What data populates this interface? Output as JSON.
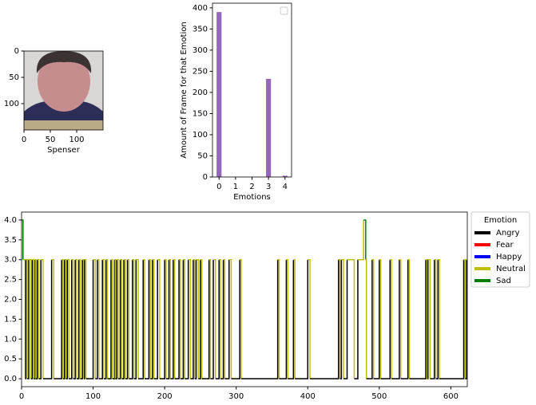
{
  "chart_data": [
    {
      "type": "image",
      "xlabel": "Spenser",
      "xlim": [
        0,
        150
      ],
      "ylim": [
        150,
        0
      ],
      "xticks": [
        0,
        50,
        100
      ],
      "yticks": [
        0,
        50,
        100
      ]
    },
    {
      "type": "bar",
      "xlabel": "Emotions",
      "ylabel": "Amount of Frame for that Emotion",
      "x": [
        0,
        1,
        2,
        3,
        4
      ],
      "values": [
        390,
        0,
        0,
        232,
        3
      ],
      "color": "#9467bd",
      "xlim": [
        -0.4,
        4.4
      ],
      "ylim": [
        0,
        411
      ],
      "xticks": [
        0,
        1,
        2,
        3,
        4
      ],
      "yticks": [
        0,
        50,
        100,
        150,
        200,
        250,
        300,
        350,
        400
      ],
      "legend": "upper right"
    },
    {
      "type": "line",
      "drawstyle": "steps-post",
      "x": [
        0,
        2,
        5,
        6,
        8,
        10,
        13,
        15,
        17,
        19,
        20,
        22,
        24,
        27,
        30,
        42,
        45,
        56,
        58,
        60,
        62,
        64,
        66,
        70,
        72,
        75,
        77,
        80,
        82,
        85,
        87,
        88,
        90,
        100,
        103,
        106,
        108,
        113,
        115,
        118,
        120,
        125,
        127,
        130,
        131,
        133,
        135,
        138,
        140,
        143,
        145,
        148,
        150,
        155,
        157,
        160,
        163,
        170,
        172,
        178,
        180,
        183,
        185,
        190,
        193,
        200,
        202,
        206,
        208,
        212,
        214,
        220,
        222,
        226,
        228,
        233,
        236,
        240,
        242,
        244,
        247,
        250,
        252,
        262,
        264,
        268,
        271,
        276,
        278,
        282,
        284,
        290,
        293,
        305,
        307,
        358,
        360,
        370,
        372,
        380,
        382,
        400,
        403,
        443,
        445,
        447,
        450,
        455,
        465,
        470,
        478,
        481,
        482,
        490,
        492,
        500,
        502,
        515,
        517,
        528,
        530,
        540,
        542,
        565,
        567,
        568,
        571,
        577,
        579,
        582,
        584,
        618,
        620,
        622,
        623
      ],
      "values": [
        4,
        3,
        0,
        3,
        0,
        3,
        0,
        3,
        0,
        3,
        0,
        3,
        0,
        3,
        0,
        3,
        0,
        3,
        0,
        3,
        0,
        3,
        0,
        3,
        0,
        3,
        0,
        3,
        0,
        3,
        0,
        3,
        0,
        3,
        0,
        3,
        0,
        3,
        0,
        3,
        0,
        3,
        0,
        3,
        0,
        3,
        0,
        3,
        0,
        3,
        0,
        3,
        0,
        3,
        0,
        3,
        0,
        3,
        0,
        3,
        0,
        3,
        0,
        3,
        0,
        3,
        0,
        3,
        0,
        3,
        0,
        3,
        0,
        3,
        0,
        3,
        0,
        3,
        0,
        3,
        0,
        3,
        0,
        3,
        0,
        3,
        0,
        3,
        0,
        3,
        0,
        3,
        0,
        3,
        0,
        3,
        0,
        3,
        0,
        3,
        0,
        3,
        0,
        3,
        0,
        3,
        0,
        3,
        0,
        3,
        4,
        3,
        0,
        3,
        0,
        3,
        0,
        3,
        0,
        3,
        0,
        3,
        0,
        3,
        0,
        3,
        0,
        3,
        0,
        3,
        0,
        3,
        0,
        3,
        3
      ],
      "xlim": [
        0,
        623
      ],
      "ylim": [
        -0.2,
        4.2
      ],
      "xticks": [
        0,
        100,
        200,
        300,
        400,
        500,
        600
      ],
      "yticks": [
        {
          "value": 0,
          "label": "0.0"
        },
        {
          "value": 0.5,
          "label": "0.5"
        },
        {
          "value": 1,
          "label": "1.0"
        },
        {
          "value": 1.5,
          "label": "1.5"
        },
        {
          "value": 2,
          "label": "2.0"
        },
        {
          "value": 2.5,
          "label": "2.5"
        },
        {
          "value": 3,
          "label": "3.0"
        },
        {
          "value": 3.5,
          "label": "3.5"
        },
        {
          "value": 4,
          "label": "4.0"
        }
      ],
      "legend": {
        "title": "Emotion",
        "position": "outside right",
        "entries": [
          {
            "name": "Angry",
            "color": "#000000"
          },
          {
            "name": "Fear",
            "color": "#ff0000"
          },
          {
            "name": "Happy",
            "color": "#0000ff"
          },
          {
            "name": "Neutral",
            "color": "#bfbf00"
          },
          {
            "name": "Sad",
            "color": "#008000"
          }
        ]
      }
    }
  ]
}
